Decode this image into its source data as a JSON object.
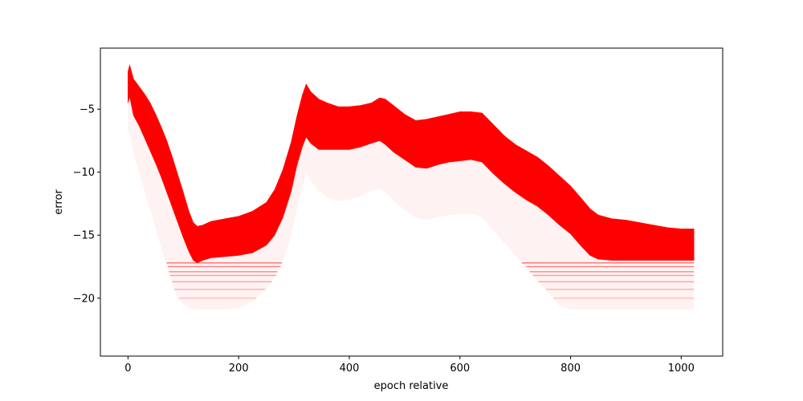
{
  "chart_data": {
    "type": "scatter",
    "title": "",
    "xlabel": "epoch relative",
    "ylabel": "error",
    "xlim": [
      -50,
      1075
    ],
    "ylim": [
      -24.6,
      -0.15
    ],
    "grid": false,
    "legend": "none",
    "x_ticks": [
      0,
      200,
      400,
      600,
      800,
      1000
    ],
    "y_ticks": [
      -20,
      -15,
      -10,
      -5
    ],
    "x_tick_labels": [
      "0",
      "200",
      "400",
      "600",
      "800",
      "1000"
    ],
    "y_tick_labels": [
      "−20",
      "−15",
      "−10",
      "−5"
    ],
    "series": [
      {
        "color": "#ff0000",
        "x_range": [
          0,
          1023
        ],
        "x": [
          0,
          3,
          10,
          20,
          30,
          40,
          50,
          60,
          70,
          80,
          90,
          100,
          110,
          118,
          125,
          135,
          150,
          175,
          200,
          225,
          250,
          265,
          280,
          295,
          305,
          315,
          322,
          330,
          345,
          360,
          380,
          400,
          420,
          440,
          455,
          465,
          480,
          500,
          520,
          540,
          560,
          580,
          600,
          620,
          640,
          660,
          680,
          700,
          720,
          740,
          760,
          780,
          800,
          820,
          835,
          850,
          875,
          900,
          925,
          950,
          975,
          1000,
          1023
        ],
        "upper": [
          -2.0,
          -1.5,
          -2.6,
          -3.2,
          -3.8,
          -4.5,
          -5.4,
          -6.4,
          -7.5,
          -8.8,
          -10.2,
          -11.6,
          -13.1,
          -14.0,
          -14.3,
          -14.2,
          -13.9,
          -13.7,
          -13.5,
          -13.1,
          -12.4,
          -11.4,
          -9.8,
          -7.6,
          -5.6,
          -3.9,
          -3.0,
          -3.6,
          -4.2,
          -4.5,
          -4.8,
          -4.8,
          -4.7,
          -4.5,
          -4.1,
          -4.2,
          -4.7,
          -5.4,
          -5.9,
          -5.8,
          -5.6,
          -5.4,
          -5.2,
          -5.2,
          -5.3,
          -6.2,
          -7.1,
          -7.8,
          -8.3,
          -8.8,
          -9.5,
          -10.3,
          -11.1,
          -12.1,
          -12.9,
          -13.4,
          -13.7,
          -13.8,
          -14.0,
          -14.2,
          -14.4,
          -14.5,
          -14.5
        ],
        "core_lower": [
          -4.5,
          -4.0,
          -5.5,
          -6.3,
          -7.3,
          -8.3,
          -9.3,
          -10.4,
          -11.6,
          -12.8,
          -14.0,
          -15.2,
          -16.3,
          -17.0,
          -17.2,
          -17.0,
          -16.8,
          -16.7,
          -16.6,
          -16.4,
          -15.8,
          -15.0,
          -13.6,
          -11.5,
          -9.5,
          -8.0,
          -7.2,
          -7.7,
          -8.2,
          -8.2,
          -8.2,
          -8.2,
          -8.0,
          -7.7,
          -7.5,
          -7.8,
          -8.4,
          -9.0,
          -9.6,
          -9.7,
          -9.4,
          -9.2,
          -9.1,
          -9.0,
          -9.2,
          -10.1,
          -10.9,
          -11.6,
          -12.2,
          -12.7,
          -13.4,
          -14.2,
          -14.9,
          -15.9,
          -16.6,
          -16.9,
          -17.0,
          -17.0,
          -17.0,
          -17.0,
          -17.0,
          -17.0,
          -17.0
        ],
        "faint_lower": [
          -6.5,
          -7.0,
          -8.5,
          -10.0,
          -11.5,
          -13.0,
          -14.5,
          -16.0,
          -17.5,
          -19.0,
          -20.0,
          -20.5,
          -20.8,
          -20.9,
          -20.9,
          -20.9,
          -20.9,
          -20.9,
          -20.8,
          -20.3,
          -19.2,
          -18.3,
          -17.0,
          -15.0,
          -13.0,
          -11.2,
          -10.0,
          -10.7,
          -11.5,
          -12.0,
          -12.3,
          -12.2,
          -11.9,
          -11.5,
          -11.3,
          -11.6,
          -12.3,
          -13.0,
          -13.6,
          -13.8,
          -13.6,
          -13.4,
          -13.3,
          -13.3,
          -13.6,
          -14.6,
          -15.6,
          -16.6,
          -17.6,
          -18.6,
          -19.6,
          -20.6,
          -20.9,
          -20.9,
          -20.9,
          -20.9,
          -20.9,
          -20.9,
          -20.9,
          -20.9,
          -20.9,
          -20.9,
          -20.9
        ],
        "quantized_levels": [
          -17.2,
          -17.5,
          -17.9,
          -18.2,
          -18.7,
          -19.3,
          -20.0,
          -20.9
        ]
      }
    ]
  }
}
